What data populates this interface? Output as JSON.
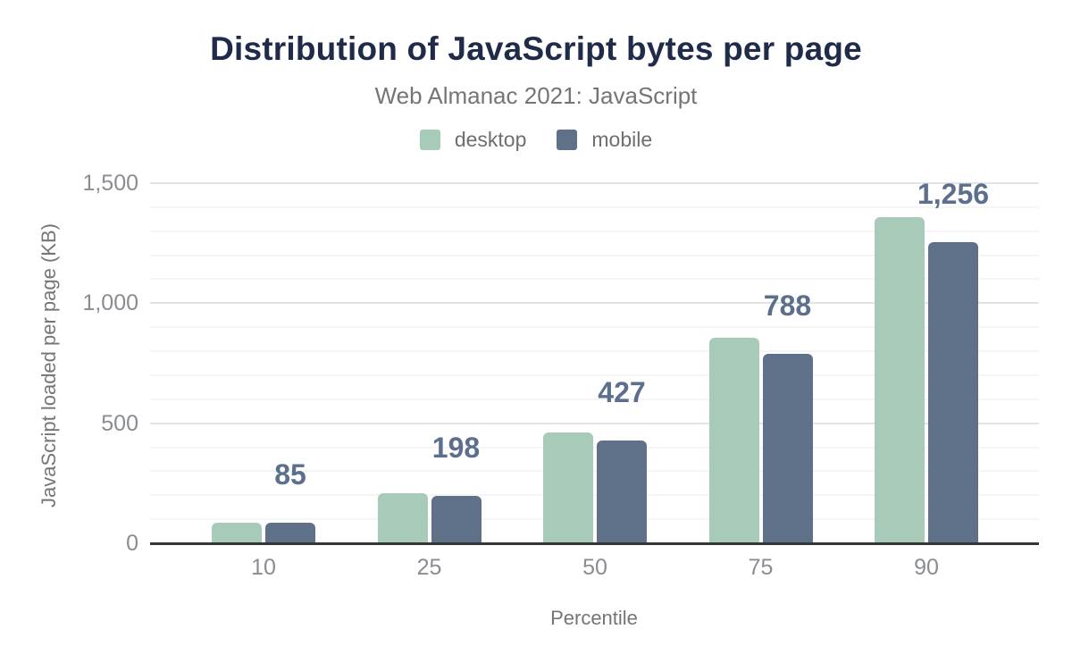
{
  "title": "Distribution of JavaScript bytes per page",
  "subtitle": "Web Almanac 2021: JavaScript",
  "chart_data": {
    "type": "bar",
    "title": "Distribution of JavaScript bytes per page",
    "subtitle": "Web Almanac 2021: JavaScript",
    "xlabel": "Percentile",
    "ylabel": "JavaScript loaded per page (KB)",
    "categories": [
      "10",
      "25",
      "50",
      "75",
      "90"
    ],
    "series": [
      {
        "name": "desktop",
        "color": "#a8cbb9",
        "values": [
          87,
          209,
          463,
          855,
          1360
        ]
      },
      {
        "name": "mobile",
        "color": "#5f7189",
        "values": [
          85,
          198,
          427,
          788,
          1256
        ]
      }
    ],
    "data_labels": {
      "on_series": "mobile",
      "values": [
        "85",
        "198",
        "427",
        "788",
        "1,256"
      ],
      "color": "#5c6f8d"
    },
    "ylim": [
      0,
      1500
    ],
    "yticks": [
      {
        "value": 0,
        "label": "0"
      },
      {
        "value": 500,
        "label": "500"
      },
      {
        "value": 1000,
        "label": "1,000"
      },
      {
        "value": 1500,
        "label": "1,500"
      }
    ],
    "minor_grid_step": 100,
    "major_grid_step": 500,
    "grid": "on",
    "legend_position": "top"
  },
  "colors": {
    "title": "#1f2b49",
    "subtitle": "#757575",
    "tick_label": "#898d93",
    "axis_title": "#757575",
    "axis_line": "#33373c",
    "grid_major": "#e4e4e4",
    "grid_minor": "#f5f5f5",
    "background": "#ffffff"
  }
}
